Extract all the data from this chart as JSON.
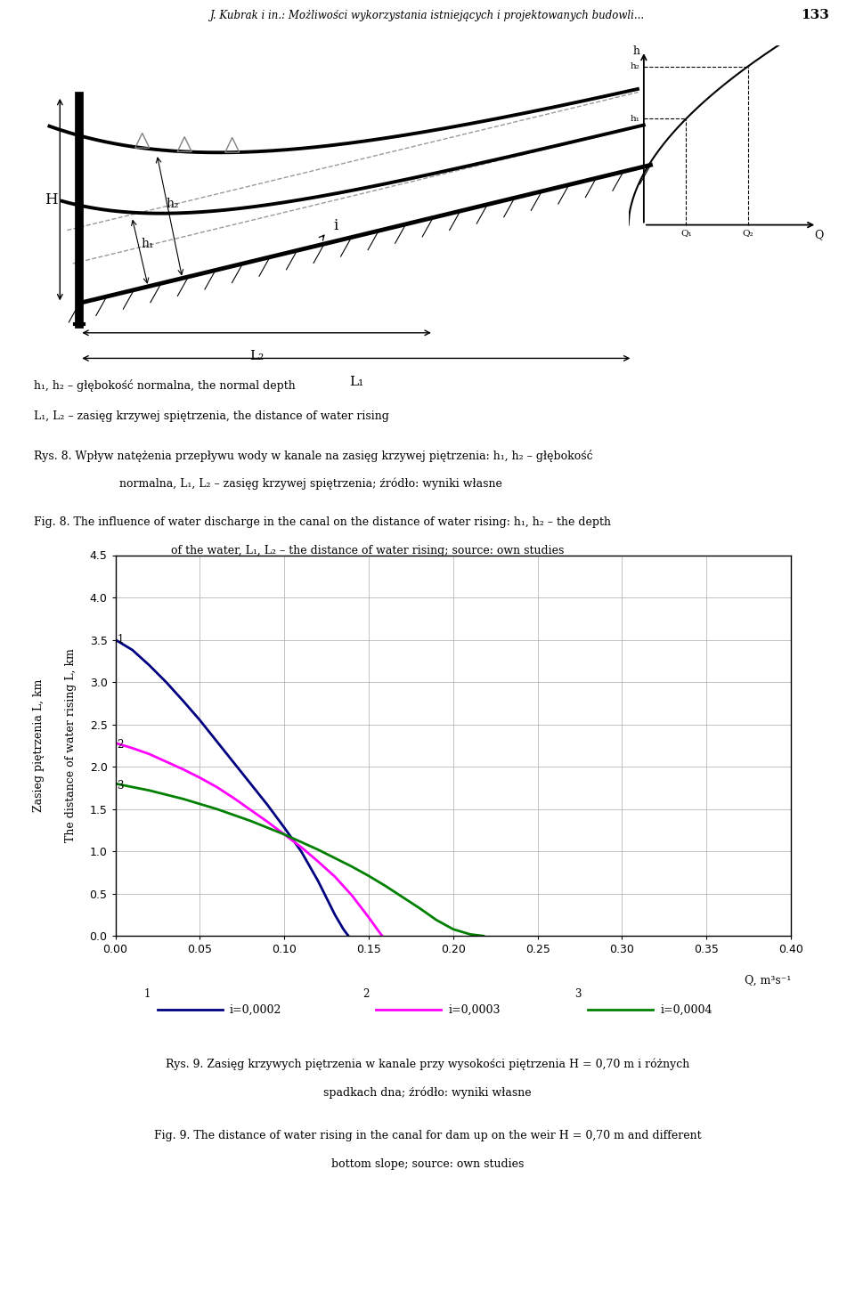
{
  "header_text": "J. Kubrak i in.: Możliwości wykorzystania istniejących i projektowanych budowli...",
  "page_number": "133",
  "curve1_color": "#000080",
  "curve2_color": "#FF00FF",
  "curve3_color": "#008000",
  "curve1_x": [
    0.0,
    0.01,
    0.02,
    0.03,
    0.04,
    0.05,
    0.06,
    0.07,
    0.08,
    0.09,
    0.1,
    0.11,
    0.12,
    0.13,
    0.135,
    0.138
  ],
  "curve1_y": [
    3.5,
    3.38,
    3.2,
    3.0,
    2.78,
    2.55,
    2.3,
    2.05,
    1.8,
    1.55,
    1.28,
    1.0,
    0.65,
    0.25,
    0.08,
    0.0
  ],
  "curve2_x": [
    0.0,
    0.01,
    0.02,
    0.03,
    0.04,
    0.05,
    0.06,
    0.07,
    0.08,
    0.09,
    0.1,
    0.11,
    0.12,
    0.13,
    0.14,
    0.15,
    0.155,
    0.158
  ],
  "curve2_y": [
    2.28,
    2.22,
    2.15,
    2.06,
    1.97,
    1.87,
    1.76,
    1.63,
    1.49,
    1.35,
    1.2,
    1.05,
    0.88,
    0.7,
    0.48,
    0.22,
    0.08,
    0.0
  ],
  "curve3_x": [
    0.0,
    0.01,
    0.02,
    0.03,
    0.04,
    0.05,
    0.06,
    0.07,
    0.08,
    0.09,
    0.1,
    0.11,
    0.12,
    0.13,
    0.14,
    0.15,
    0.16,
    0.17,
    0.18,
    0.19,
    0.2,
    0.21,
    0.218
  ],
  "curve3_y": [
    1.8,
    1.76,
    1.72,
    1.67,
    1.62,
    1.56,
    1.5,
    1.43,
    1.36,
    1.28,
    1.2,
    1.11,
    1.02,
    0.92,
    0.82,
    0.71,
    0.59,
    0.46,
    0.33,
    0.19,
    0.08,
    0.02,
    0.0
  ],
  "xlim": [
    0.0,
    0.4
  ],
  "ylim": [
    0.0,
    4.5
  ],
  "xticks": [
    0.0,
    0.05,
    0.1,
    0.15,
    0.2,
    0.25,
    0.3,
    0.35,
    0.4
  ],
  "yticks": [
    0.0,
    0.5,
    1.0,
    1.5,
    2.0,
    2.5,
    3.0,
    3.5,
    4.0,
    4.5
  ],
  "bg_color": "#FFFFFF",
  "grid_color": "#AAAAAA",
  "grid_linestyle": "-",
  "grid_linewidth": 0.5
}
